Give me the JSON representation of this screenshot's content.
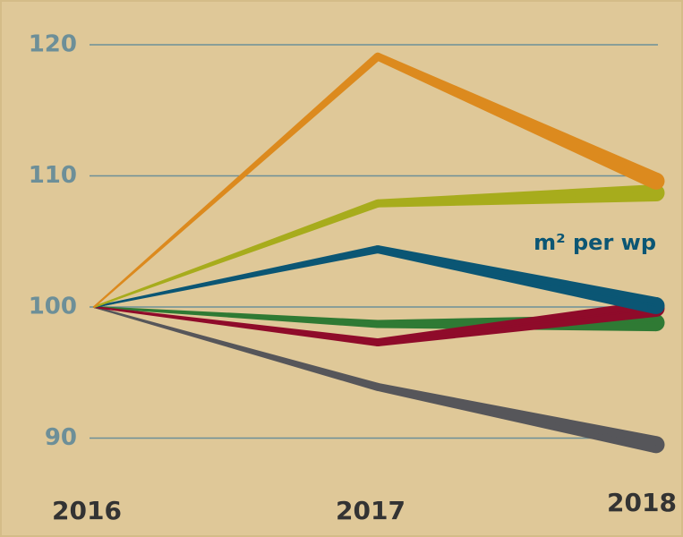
{
  "chart_data": {
    "type": "line",
    "categories": [
      "2016",
      "2017",
      "2018"
    ],
    "series": [
      {
        "color": "#56565a",
        "values": [
          100,
          93.9,
          89.5
        ]
      },
      {
        "color": "#2f7a34",
        "values": [
          100,
          98.7,
          98.8
        ]
      },
      {
        "color": "#8f0b2a",
        "values": [
          100,
          97.3,
          99.9
        ]
      },
      {
        "color": "#0b5674",
        "values": [
          100,
          104.4,
          100.1
        ]
      },
      {
        "color": "#a7ac1c",
        "values": [
          100,
          107.9,
          108.7
        ]
      },
      {
        "color": "#dc8a1e",
        "values": [
          100,
          119.1,
          109.6
        ]
      }
    ],
    "annotation": "m² per wp",
    "annotation_color": "#0b5674",
    "ylim": [
      88,
      122
    ],
    "yticks": [
      90,
      100,
      110,
      120
    ],
    "grid": true
  }
}
